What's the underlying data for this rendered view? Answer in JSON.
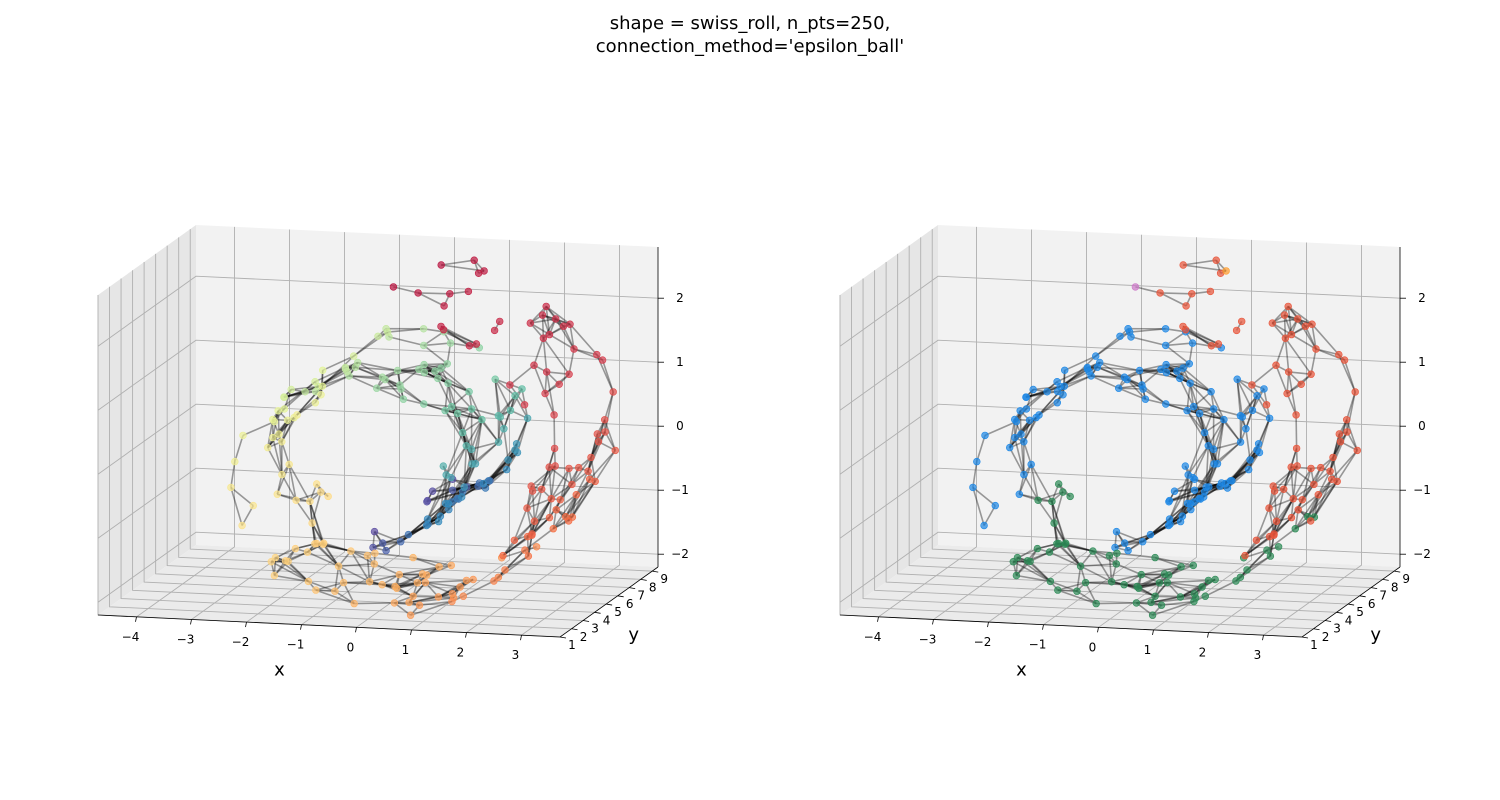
{
  "title_line1": "shape = swiss_roll, n_pts=250,",
  "title_line2": "connection_method='epsilon_ball'",
  "chart_data": [
    {
      "type": "scatter",
      "subtype": "3d-scatter-with-edges",
      "panel": "left",
      "title": "",
      "xlabel": "x",
      "ylabel": "y",
      "zlabel": "",
      "xlim": [
        -4.7,
        3.7
      ],
      "ylim": [
        1,
        9.5
      ],
      "zlim": [
        -2.2,
        2.8
      ],
      "x_ticks": [
        "−4",
        "−3",
        "−2",
        "−1",
        "0",
        "1",
        "2",
        "3"
      ],
      "y_ticks": [
        "1",
        "2",
        "3",
        "4",
        "5",
        "6",
        "7",
        "8",
        "9"
      ],
      "z_ticks": [
        "−2",
        "−1",
        "0",
        "1",
        "2"
      ],
      "grid": true,
      "n_points": 250,
      "point_coloring": "continuous colormap along the roll (purple → blue → teal → green → yellow-green → pale yellow → orange → red)",
      "color_stops": [
        "#5e4fa2",
        "#3288bd",
        "#66c2a5",
        "#abdda4",
        "#e6f598",
        "#fee08b",
        "#fdae61",
        "#f46d43",
        "#d53e4f",
        "#b8123f"
      ],
      "edge_color": "#000000"
    },
    {
      "type": "scatter",
      "subtype": "3d-scatter-with-edges",
      "panel": "right",
      "title": "",
      "xlabel": "x",
      "ylabel": "y",
      "zlabel": "",
      "xlim": [
        -4.7,
        3.7
      ],
      "ylim": [
        1,
        9.5
      ],
      "zlim": [
        -2.2,
        2.8
      ],
      "x_ticks": [
        "−4",
        "−3",
        "−2",
        "−1",
        "0",
        "1",
        "2",
        "3"
      ],
      "y_ticks": [
        "1",
        "2",
        "3",
        "4",
        "5",
        "6",
        "7",
        "8",
        "9"
      ],
      "z_ticks": [
        "−2",
        "−1",
        "0",
        "1",
        "2"
      ],
      "grid": true,
      "n_points": 250,
      "point_coloring": "categorical clusters",
      "clusters": [
        {
          "color": "#cc79c8",
          "count": 1
        },
        {
          "color": "#ff9d2e",
          "count": 1
        },
        {
          "color": "#e8553a",
          "count": 40
        },
        {
          "color": "#2e8b57",
          "count": 40
        },
        {
          "color": "#1e88e5",
          "count": 168
        }
      ],
      "edge_color": "#000000"
    }
  ]
}
